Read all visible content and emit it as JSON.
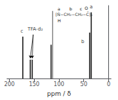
{
  "chart_data": {
    "type": "bar",
    "x": [
      173,
      158,
      154,
      116,
      113,
      38,
      35
    ],
    "values": [
      0.62,
      0.28,
      0.28,
      0.5,
      1.0,
      0.68,
      0.98
    ],
    "colors": [
      "#111111",
      "#111111",
      "#111111",
      "#111111",
      "#888888",
      "#111111",
      "#111111"
    ],
    "xlim": [
      205,
      -5
    ],
    "xticks": [
      200,
      150,
      100,
      50,
      0
    ],
    "ylim": [
      0,
      1.08
    ],
    "xlabel": "ppm / δ",
    "grid": false,
    "tick_labels": "x",
    "annotations": [
      {
        "text": "c",
        "x": 175,
        "y": 0.65
      },
      {
        "text": "b",
        "x": 52,
        "y": 0.5
      },
      {
        "text": "a",
        "x": 35,
        "y": 1.01
      },
      {
        "text": "TFA-d₂",
        "x": 148,
        "y": 0.68,
        "arrows": [
          {
            "from": [
              152,
              0.65
            ],
            "to": [
              158,
              0.3
            ]
          },
          {
            "from": [
              152,
              0.65
            ],
            "to": [
              154,
              0.3
            ]
          }
        ]
      }
    ],
    "structure": {
      "chain": "[Ñ−CH₂−CH₂−C̃]ₙ",
      "labels": [
        "a",
        "b",
        "c"
      ],
      "below": "H",
      "above": "O"
    }
  }
}
